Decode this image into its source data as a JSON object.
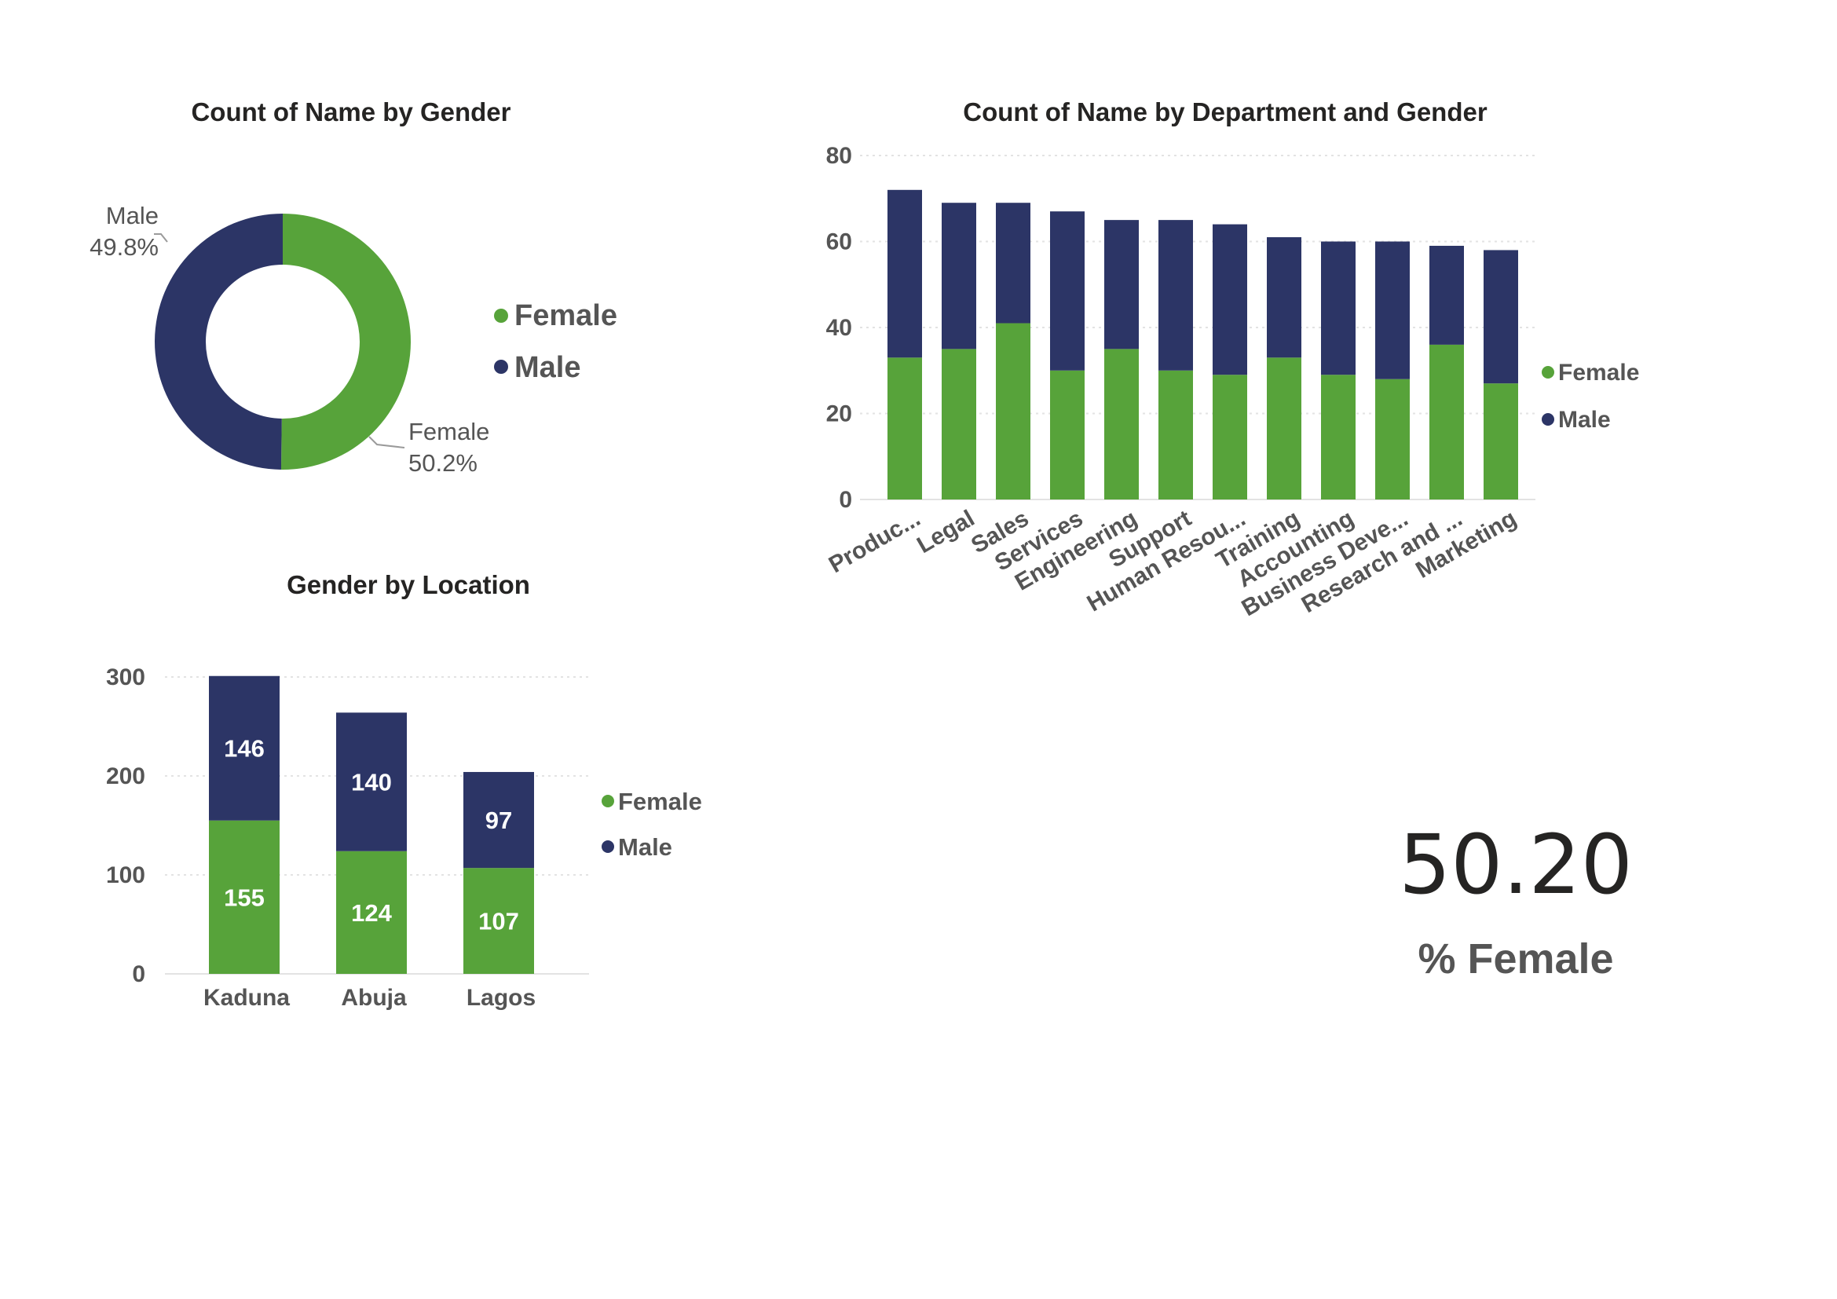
{
  "colors": {
    "female": "#57a33a",
    "male": "#2c3566"
  },
  "card": {
    "value": "50.20",
    "label": "% Female"
  },
  "chart_data": [
    {
      "id": "gender-donut",
      "type": "pie",
      "title": "Count of Name by Gender",
      "labels": [
        "Female",
        "Male"
      ],
      "values": [
        50.2,
        49.8
      ],
      "value_labels": [
        "50.2%",
        "49.8%"
      ],
      "legend": [
        "Female",
        "Male"
      ],
      "legend_position": "right"
    },
    {
      "id": "dept-stacked",
      "type": "bar",
      "stacked": true,
      "title": "Count of Name by Department and Gender",
      "categories": [
        "Produc...",
        "Legal",
        "Sales",
        "Services",
        "Engineering",
        "Support",
        "Human Resou...",
        "Training",
        "Accounting",
        "Business Deve...",
        "Research and ...",
        "Marketing"
      ],
      "series": [
        {
          "name": "Female",
          "values": [
            33,
            35,
            41,
            30,
            35,
            30,
            29,
            33,
            29,
            28,
            36,
            27
          ]
        },
        {
          "name": "Male",
          "values": [
            39,
            34,
            28,
            37,
            30,
            35,
            35,
            28,
            31,
            32,
            23,
            31
          ]
        }
      ],
      "yticks": [
        "0",
        "20",
        "40",
        "60",
        "80"
      ],
      "ylim": [
        0,
        80
      ],
      "grid": true,
      "legend_position": "right"
    },
    {
      "id": "location-stacked",
      "type": "bar",
      "stacked": true,
      "title": "Gender by Location",
      "categories": [
        "Kaduna",
        "Abuja",
        "Lagos"
      ],
      "series": [
        {
          "name": "Female",
          "values": [
            155,
            124,
            107
          ]
        },
        {
          "name": "Male",
          "values": [
            146,
            140,
            97
          ]
        }
      ],
      "yticks": [
        "0",
        "100",
        "200",
        "300"
      ],
      "ylim": [
        0,
        300
      ],
      "grid": true,
      "legend_position": "right"
    }
  ]
}
